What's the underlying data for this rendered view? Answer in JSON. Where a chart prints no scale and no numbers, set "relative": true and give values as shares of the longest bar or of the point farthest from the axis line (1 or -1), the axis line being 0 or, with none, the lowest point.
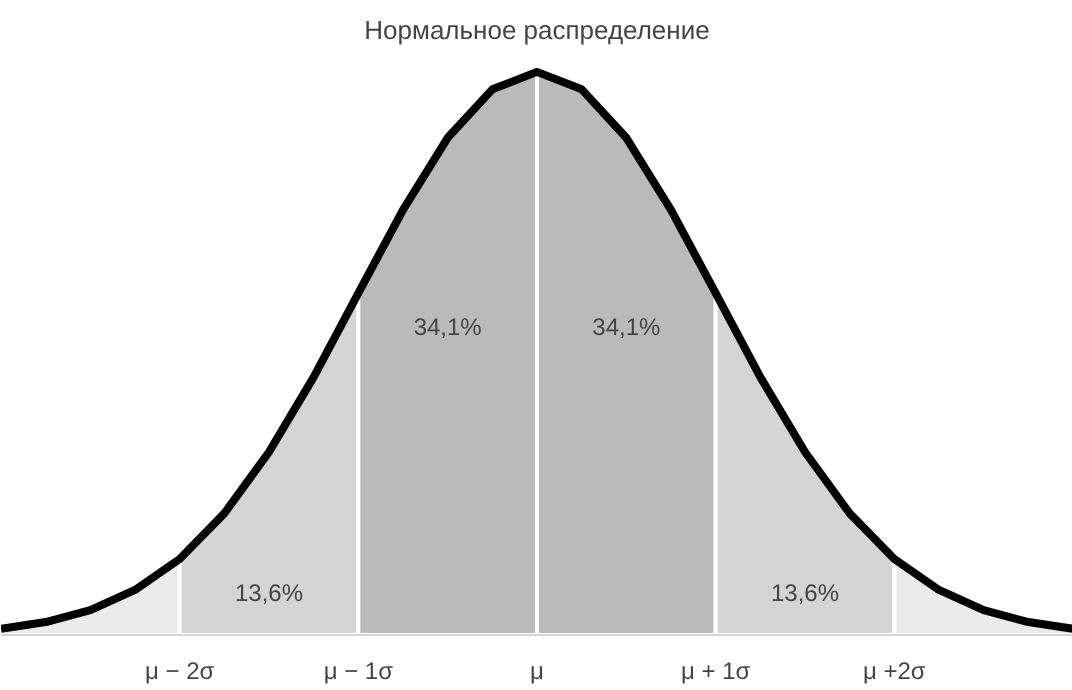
{
  "chart_data": {
    "type": "area",
    "title": "Нормальное распределение",
    "relative": true,
    "xlim": [
      -3,
      3
    ],
    "xticks": [
      {
        "value": -2,
        "label": "μ − 2σ"
      },
      {
        "value": -1,
        "label": "μ − 1σ"
      },
      {
        "value": 0,
        "label": "μ"
      },
      {
        "value": 1,
        "label": "μ + 1σ"
      },
      {
        "value": 2,
        "label": "μ +2σ"
      }
    ],
    "tick_labels": "x",
    "series": [
      {
        "color": "#ebebeb",
        "x": [
          -3,
          -2.75,
          -2.5,
          -2.25,
          -2
        ],
        "values": [
          0.011,
          0.023,
          0.044,
          0.08,
          0.135
        ]
      },
      {
        "color": "#d4d4d4",
        "x": [
          -2,
          -1.75,
          -1.5,
          -1.25,
          -1
        ],
        "values": [
          0.135,
          0.216,
          0.325,
          0.458,
          0.607
        ]
      },
      {
        "color": "#bababa",
        "x": [
          -1,
          -0.75,
          -0.5,
          -0.25,
          0
        ],
        "values": [
          0.607,
          0.755,
          0.883,
          0.969,
          1
        ]
      },
      {
        "color": "#bababa",
        "x": [
          0,
          0.25,
          0.5,
          0.75,
          1
        ],
        "values": [
          1,
          0.969,
          0.883,
          0.755,
          0.607
        ]
      },
      {
        "color": "#d4d4d4",
        "x": [
          1,
          1.25,
          1.5,
          1.75,
          2
        ],
        "values": [
          0.607,
          0.458,
          0.325,
          0.216,
          0.135
        ]
      },
      {
        "color": "#ebebeb",
        "x": [
          2,
          2.25,
          2.5,
          2.75,
          3
        ],
        "values": [
          0.135,
          0.08,
          0.044,
          0.023,
          0.011
        ]
      },
      {
        "type": "line",
        "color": "#000000",
        "x": [
          -3,
          -2.75,
          -2.5,
          -2.25,
          -2,
          -1.75,
          -1.5,
          -1.25,
          -1,
          -0.75,
          -0.5,
          -0.25,
          0,
          0.25,
          0.5,
          0.75,
          1,
          1.25,
          1.5,
          1.75,
          2,
          2.25,
          2.5,
          2.75,
          3
        ],
        "values": [
          0.011,
          0.023,
          0.044,
          0.08,
          0.135,
          0.216,
          0.325,
          0.458,
          0.607,
          0.755,
          0.883,
          0.969,
          1,
          0.969,
          0.883,
          0.755,
          0.607,
          0.458,
          0.325,
          0.216,
          0.135,
          0.08,
          0.044,
          0.023,
          0.011
        ]
      }
    ],
    "annotations": [
      "13,6%",
      "34,1%",
      "34,1%",
      "13,6%"
    ]
  }
}
